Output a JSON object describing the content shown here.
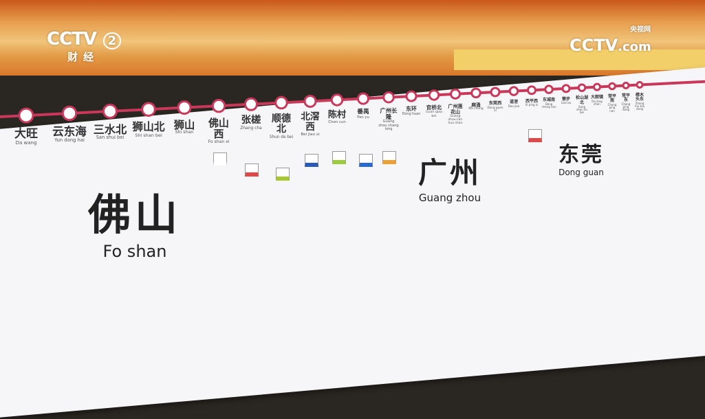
{
  "logos": {
    "left": {
      "brand": "CCTV",
      "channel": "2",
      "subtitle": "财经"
    },
    "right": {
      "brand": "CCTV",
      "suffix": ".com",
      "cn": "央视网"
    }
  },
  "line_color": "#c9385a",
  "stations": [
    {
      "cn": "大旺",
      "py": "Da wang"
    },
    {
      "cn": "云东海",
      "py": "Yun dong hai"
    },
    {
      "cn": "三水北",
      "py": "San shui bei"
    },
    {
      "cn": "狮山北",
      "py": "Shi shan bei"
    },
    {
      "cn": "狮山",
      "py": "Shi shan"
    },
    {
      "cn": "佛山西",
      "py": "Fo shan xi"
    },
    {
      "cn": "张槎",
      "py": "Zhang cha"
    },
    {
      "cn": "顺德北",
      "py": "Shun de bei"
    },
    {
      "cn": "北滘西",
      "py": "Bei Jiao xi"
    },
    {
      "cn": "陈村",
      "py": "Chen cun"
    },
    {
      "cn": "番禺",
      "py": "Pan yu"
    },
    {
      "cn": "广州长隆",
      "py": "Guang zhou chang long"
    },
    {
      "cn": "东环",
      "py": "Dong huan"
    },
    {
      "cn": "官桥北",
      "py": "Guan qiao bei"
    },
    {
      "cn": "广州莲花山",
      "py": "Guang zhou lian hua shan"
    },
    {
      "cn": "麻涌",
      "py": "Ma chong"
    },
    {
      "cn": "东莞西",
      "py": "Dong guan xi"
    },
    {
      "cn": "道滘",
      "py": "Dao jiao"
    },
    {
      "cn": "西平西",
      "py": "Xi ping xi"
    },
    {
      "cn": "东城南",
      "py": "Dong cheng nan"
    },
    {
      "cn": "寮步",
      "py": "Liao bu"
    },
    {
      "cn": "松山湖北",
      "py": "Song shan hu bei"
    },
    {
      "cn": "大朗镇",
      "py": "Da lang zhen"
    },
    {
      "cn": "常平南",
      "py": "Chang ping nan"
    },
    {
      "cn": "常平东",
      "py": "Chang ping dong"
    },
    {
      "cn": "樟木头东",
      "py": "Zhang mu tou dong"
    }
  ],
  "cities": [
    {
      "cn": "佛山",
      "py": "Fo shan"
    },
    {
      "cn": "广州",
      "py": "Guang zhou"
    },
    {
      "cn": "东莞",
      "py": "Dong guan"
    }
  ]
}
